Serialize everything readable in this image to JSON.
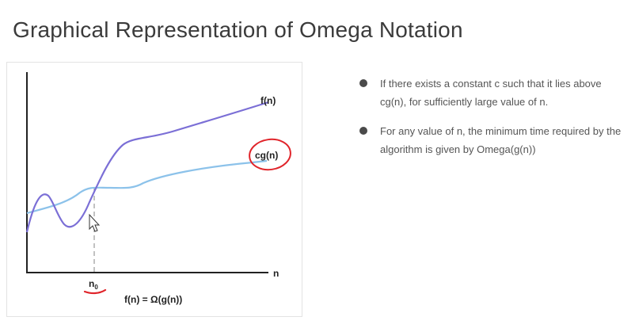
{
  "slide": {
    "title": "Graphical Representation of Omega Notation"
  },
  "figure": {
    "curve_f_label": "f(n)",
    "curve_cg_label": "cg(n)",
    "x_axis_label": "n",
    "n0_label": "n",
    "n0_subscript": "0",
    "formula": "f(n) = Ω(g(n))",
    "colors": {
      "f_curve": "#7b6fd6",
      "cg_curve": "#8cc2ea",
      "annotation_red": "#e0242a",
      "axis": "#222222",
      "dashed_line": "#9a9a9a"
    }
  },
  "bullets": [
    {
      "text": "If there exists a constant c such that it lies above cg(n), for sufficiently large value of n."
    },
    {
      "text": "For any value of n, the minimum time required by the algorithm is given by Omega(g(n))"
    }
  ],
  "cursor": {
    "icon": "mouse-pointer-icon"
  }
}
